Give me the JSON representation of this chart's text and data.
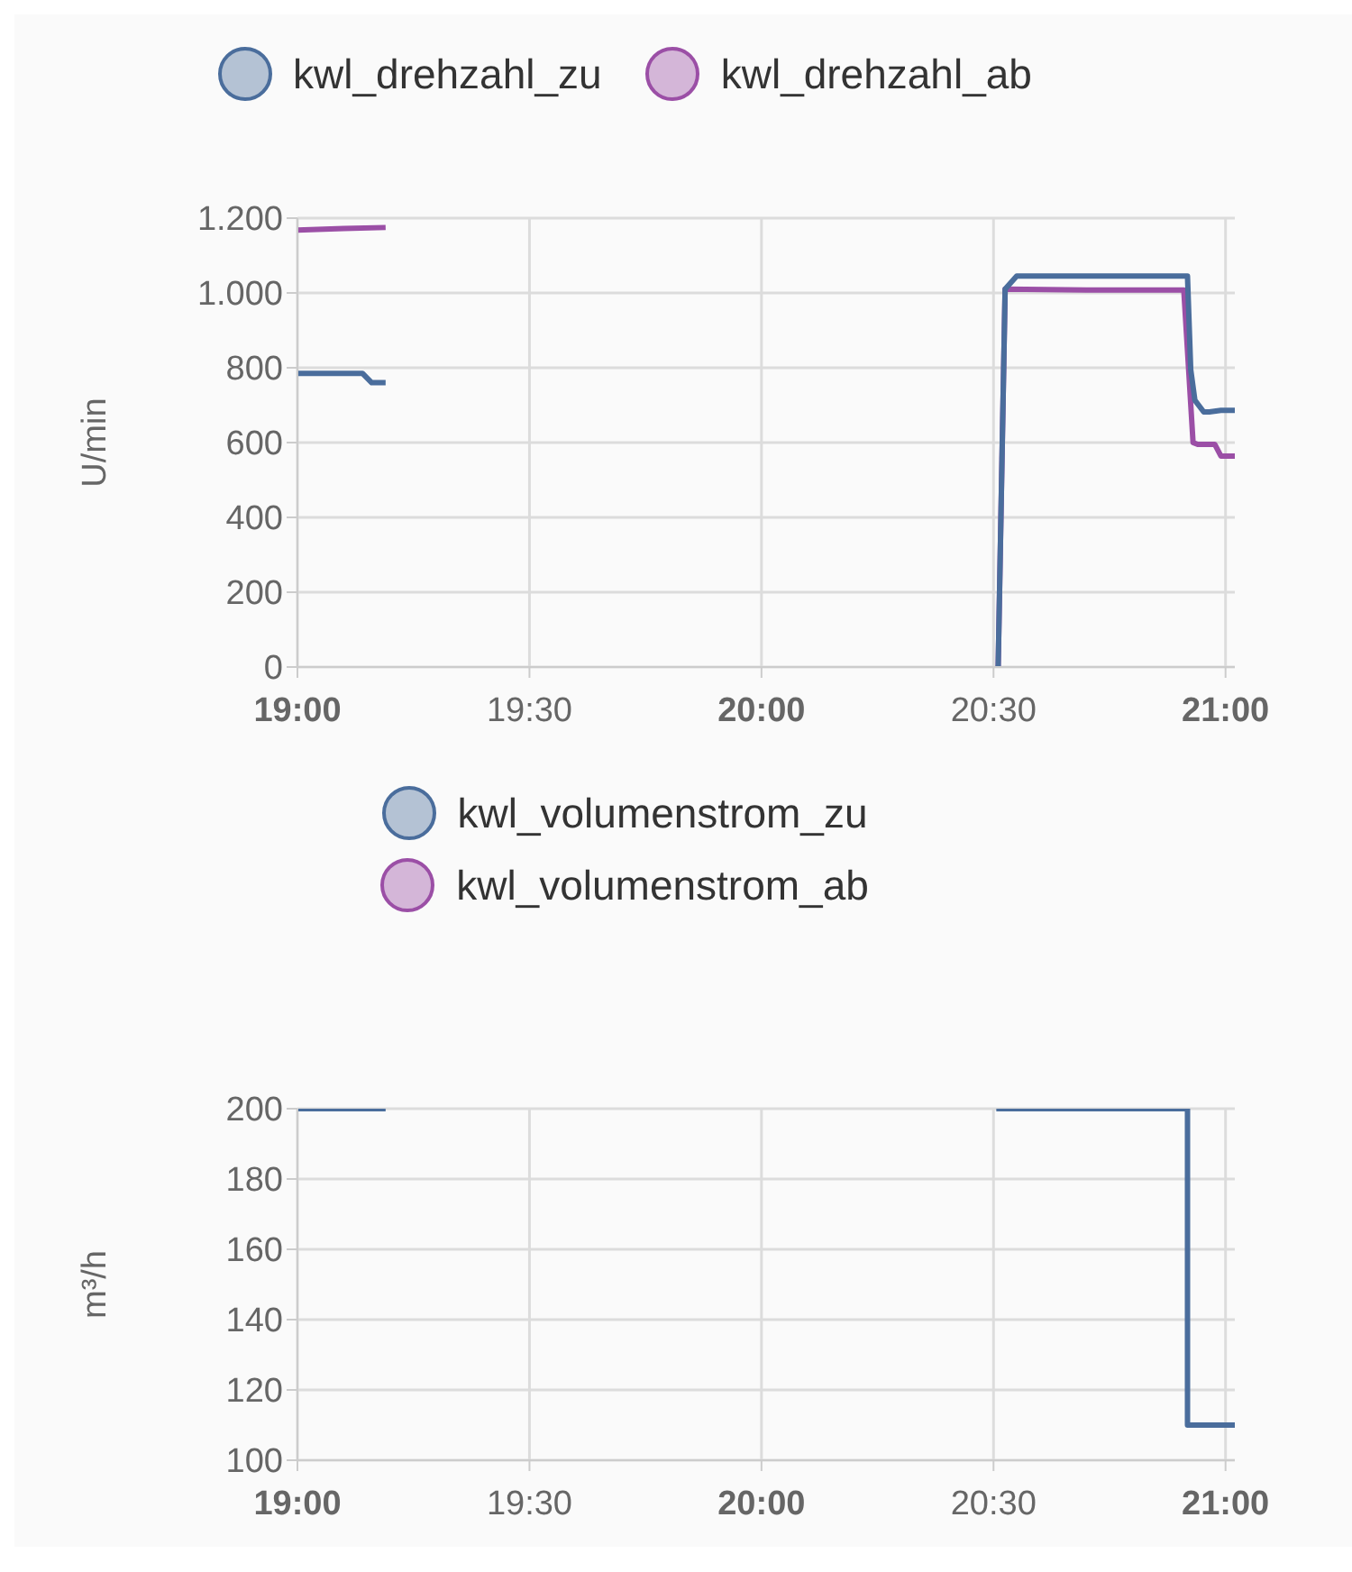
{
  "chart_data": [
    {
      "type": "line",
      "ylabel": "U/min",
      "legend": "top",
      "grid": true,
      "marker": "none",
      "line_style": "solid",
      "xlim": [
        19,
        21.02
      ],
      "xticks": [
        {
          "value": 19,
          "label": "19:00"
        },
        {
          "value": 19.5,
          "label": "19:30"
        },
        {
          "value": 20,
          "label": "20:00"
        },
        {
          "value": 20.5,
          "label": "20:30"
        },
        {
          "value": 21,
          "label": "21:00"
        }
      ],
      "ylim": [
        0,
        1200
      ],
      "yticks": [
        {
          "value": 0,
          "label": "0"
        },
        {
          "value": 200,
          "label": "200"
        },
        {
          "value": 400,
          "label": "400"
        },
        {
          "value": 600,
          "label": "600"
        },
        {
          "value": 800,
          "label": "800"
        },
        {
          "value": 1000,
          "label": "1.000"
        },
        {
          "value": 1200,
          "label": "1.200"
        }
      ],
      "series": [
        {
          "name": "kwl_drehzahl_zu",
          "color": "#4a6d9c",
          "x": [
            19,
            19.05,
            19.14,
            19.16,
            19.19,
            19.3,
            20.51,
            20.525,
            20.55,
            20.7,
            20.918,
            20.925,
            20.934,
            20.953,
            20.965,
            20.99,
            21.02
          ],
          "values": [
            785,
            785,
            785,
            760,
            760,
            null,
            0,
            1010,
            1045,
            1045,
            1045,
            795,
            713,
            682,
            682,
            686,
            686
          ]
        },
        {
          "name": "kwl_drehzahl_ab",
          "color": "#9b4fa6",
          "x": [
            19,
            19.1,
            19.19,
            19.3,
            20.51,
            20.525,
            20.7,
            20.91,
            20.93,
            20.94,
            20.977,
            20.99,
            21.02
          ],
          "values": [
            1168,
            1172,
            1175,
            null,
            0,
            1010,
            1008,
            1008,
            600,
            595,
            595,
            564,
            564
          ]
        }
      ]
    },
    {
      "type": "step",
      "ylabel": "m³/h",
      "legend": "top",
      "grid": true,
      "marker": "none",
      "line_style": "solid",
      "xlim": [
        19,
        21.02
      ],
      "xticks": [
        {
          "value": 19,
          "label": "19:00"
        },
        {
          "value": 19.5,
          "label": "19:30"
        },
        {
          "value": 20,
          "label": "20:00"
        },
        {
          "value": 20.5,
          "label": "20:30"
        },
        {
          "value": 21,
          "label": "21:00"
        }
      ],
      "ylim": [
        100,
        200
      ],
      "yticks": [
        100,
        120,
        140,
        160,
        180,
        200
      ],
      "series": [
        {
          "name": "kwl_volumenstrom_zu",
          "color": "#4a6d9c",
          "x": [
            19,
            19.19,
            19.3,
            20.506,
            20.918,
            21.02
          ],
          "values": [
            200,
            200,
            null,
            200,
            110,
            110
          ]
        },
        {
          "name": "kwl_volumenstrom_ab",
          "color": "#9b4fa6"
        }
      ]
    }
  ]
}
